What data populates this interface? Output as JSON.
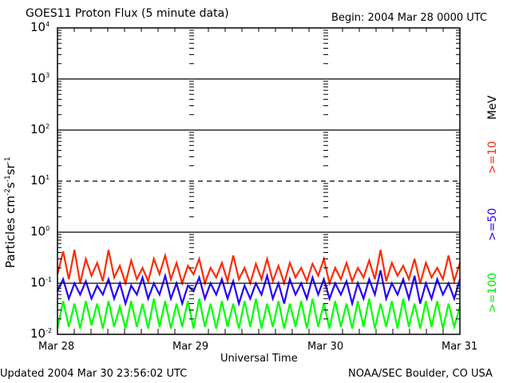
{
  "header": {
    "title": "GOES11 Proton Flux (5 minute data)",
    "begin": "Begin: 2004 Mar 28 0000 UTC"
  },
  "footer": {
    "updated": "Updated 2004 Mar 30 23:56:02 UTC",
    "source": "NOAA/SEC Boulder, CO USA"
  },
  "chart_data": {
    "type": "line",
    "title": "GOES11 Proton Flux (5 minute data)",
    "xlabel": "Universal Time",
    "ylabel": "Particles cm^-2 s^-1 sr^-1",
    "yscale": "log",
    "ylim": [
      0.01,
      10000
    ],
    "xlim_hours": [
      0,
      72
    ],
    "x_ticks": [
      "Mar 28",
      "Mar 29",
      "Mar 30",
      "Mar 31"
    ],
    "y_ticks": [
      {
        "base": "10",
        "exp": "4"
      },
      {
        "base": "10",
        "exp": "3"
      },
      {
        "base": "10",
        "exp": "2"
      },
      {
        "base": "10",
        "exp": "1"
      },
      {
        "base": "10",
        "exp": "0"
      },
      {
        "base": "10",
        "exp": "-1"
      },
      {
        "base": "10",
        "exp": "-2"
      }
    ],
    "solid_reference_lines": [
      1000,
      100,
      1,
      0.1
    ],
    "dashed_threshold_line": 10,
    "unit_label": "MeV",
    "series": [
      {
        "name": ">=10",
        "color": "#ff2a00",
        "values": [
          0.15,
          0.42,
          0.12,
          0.45,
          0.1,
          0.3,
          0.14,
          0.25,
          0.11,
          0.45,
          0.13,
          0.22,
          0.1,
          0.28,
          0.12,
          0.2,
          0.11,
          0.3,
          0.15,
          0.35,
          0.12,
          0.25,
          0.1,
          0.22,
          0.15,
          0.3,
          0.1,
          0.2,
          0.13,
          0.25,
          0.11,
          0.35,
          0.12,
          0.2,
          0.1,
          0.24,
          0.12,
          0.3,
          0.11,
          0.22,
          0.1,
          0.25,
          0.13,
          0.2,
          0.11,
          0.24,
          0.14,
          0.3,
          0.1,
          0.2,
          0.12,
          0.25,
          0.11,
          0.2,
          0.13,
          0.28,
          0.12,
          0.45,
          0.11,
          0.25,
          0.14,
          0.22,
          0.12,
          0.3,
          0.1,
          0.25,
          0.13,
          0.2,
          0.12,
          0.35,
          0.11,
          0.25
        ]
      },
      {
        "name": ">=50",
        "color": "#2200ff",
        "values": [
          0.07,
          0.12,
          0.05,
          0.1,
          0.06,
          0.11,
          0.05,
          0.09,
          0.06,
          0.12,
          0.05,
          0.1,
          0.04,
          0.09,
          0.06,
          0.13,
          0.05,
          0.1,
          0.06,
          0.14,
          0.05,
          0.1,
          0.04,
          0.09,
          0.07,
          0.13,
          0.05,
          0.1,
          0.06,
          0.12,
          0.05,
          0.11,
          0.04,
          0.09,
          0.05,
          0.1,
          0.06,
          0.14,
          0.05,
          0.1,
          0.04,
          0.12,
          0.06,
          0.1,
          0.05,
          0.13,
          0.06,
          0.12,
          0.05,
          0.1,
          0.06,
          0.11,
          0.04,
          0.1,
          0.05,
          0.12,
          0.06,
          0.18,
          0.05,
          0.1,
          0.06,
          0.12,
          0.05,
          0.14,
          0.04,
          0.1,
          0.05,
          0.12,
          0.06,
          0.1,
          0.05,
          0.12
        ]
      },
      {
        "name": ">=100",
        "color": "#00ff00",
        "values": [
          0.013,
          0.045,
          0.014,
          0.04,
          0.013,
          0.045,
          0.015,
          0.04,
          0.013,
          0.045,
          0.014,
          0.035,
          0.013,
          0.045,
          0.014,
          0.04,
          0.013,
          0.05,
          0.014,
          0.045,
          0.013,
          0.04,
          0.014,
          0.045,
          0.013,
          0.05,
          0.014,
          0.04,
          0.013,
          0.045,
          0.014,
          0.04,
          0.013,
          0.045,
          0.014,
          0.05,
          0.013,
          0.04,
          0.014,
          0.045,
          0.013,
          0.04,
          0.014,
          0.045,
          0.013,
          0.05,
          0.014,
          0.04,
          0.013,
          0.045,
          0.014,
          0.04,
          0.013,
          0.045,
          0.014,
          0.05,
          0.013,
          0.04,
          0.014,
          0.045,
          0.013,
          0.05,
          0.014,
          0.04,
          0.013,
          0.045,
          0.014,
          0.045,
          0.013,
          0.04,
          0.014,
          0.035
        ]
      }
    ]
  }
}
